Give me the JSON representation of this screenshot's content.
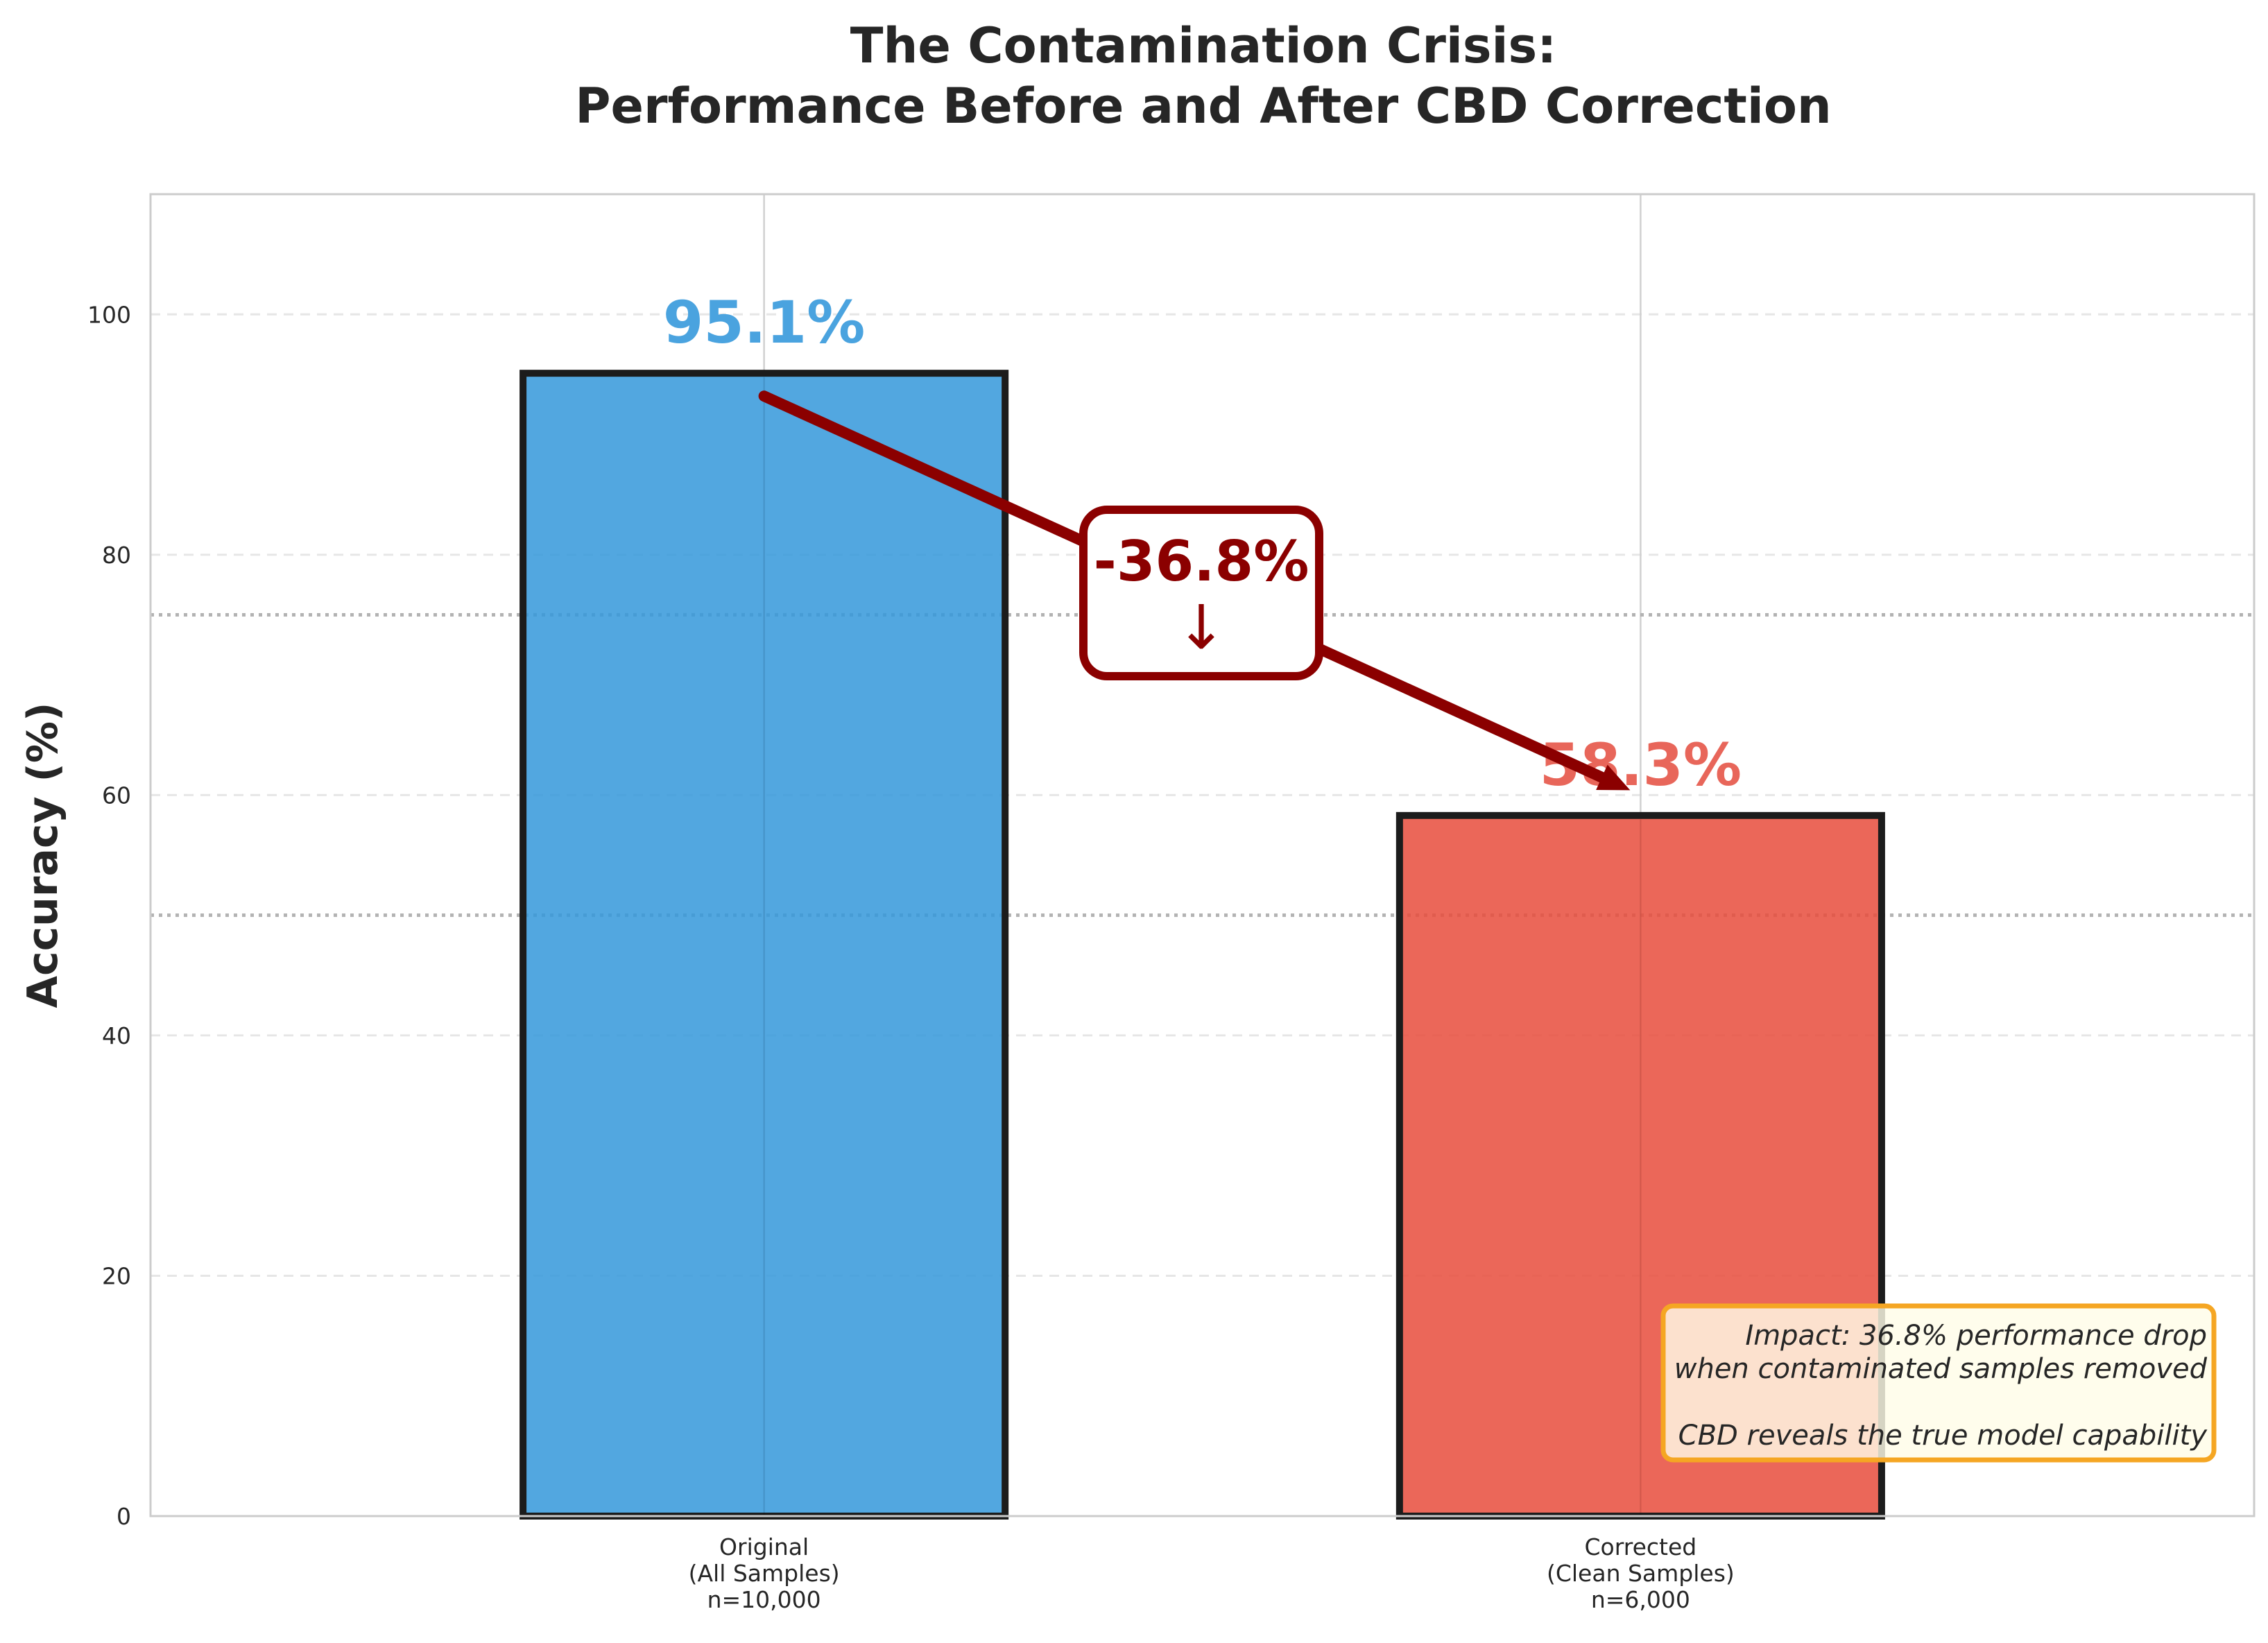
{
  "chart_data": {
    "type": "bar",
    "title": [
      "The Contamination Crisis:",
      "Performance Before and After CBD Correction"
    ],
    "ylabel": "Accuracy (%)",
    "ylim": [
      0,
      110
    ],
    "yticks": [
      0,
      20,
      40,
      60,
      80,
      100
    ],
    "grid": true,
    "reference_lines": [
      75,
      50
    ],
    "categories": [
      [
        "Original",
        "(All Samples)",
        "n=10,000"
      ],
      [
        "Corrected",
        "(Clean Samples)",
        "n=6,000"
      ]
    ],
    "values": [
      95.1,
      58.3
    ],
    "value_labels": [
      "95.1%",
      "58.3%"
    ],
    "colors": [
      "#3498db",
      "#e74c3c"
    ],
    "label_colors": [
      "#4aa3df",
      "#e8665a"
    ],
    "annotation": {
      "text": "-36.8%",
      "arrow_glyph": "↓",
      "color": "#8b0000"
    },
    "note": {
      "lines": [
        "Impact: 36.8% performance drop",
        "when contaminated samples removed",
        "",
        "CBD reveals the true model capability"
      ],
      "border_color": "#f5a623",
      "background": "#fffde8"
    }
  }
}
